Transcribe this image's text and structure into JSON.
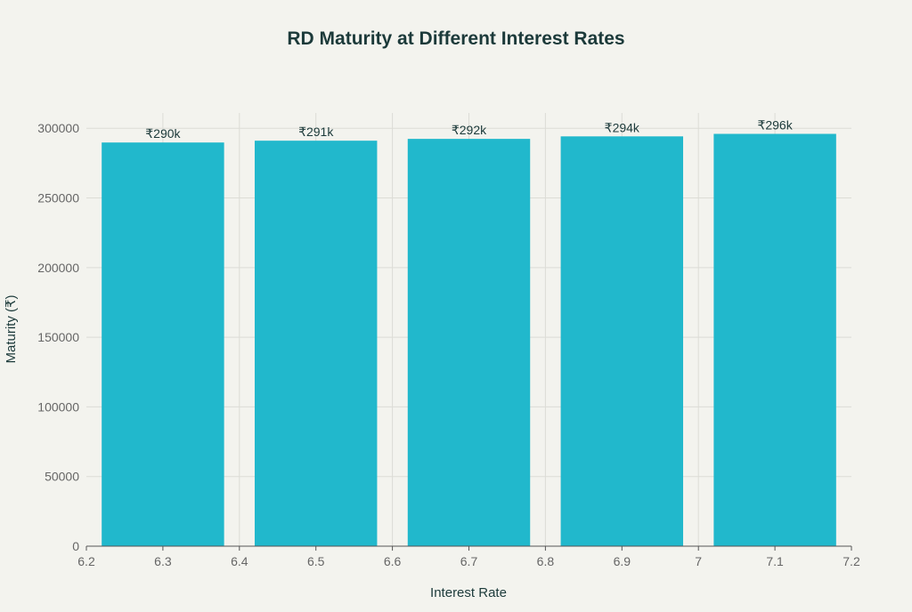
{
  "chart_data": {
    "type": "bar",
    "title": "RD Maturity at Different Interest Rates",
    "xlabel": "Interest Rate",
    "ylabel": "Maturity (₹)",
    "x": [
      6.3,
      6.5,
      6.7,
      6.9,
      7.1
    ],
    "values": [
      289800,
      291100,
      292400,
      294200,
      296000
    ],
    "data_labels": [
      "₹290k",
      "₹291k",
      "₹292k",
      "₹294k",
      "₹296k"
    ],
    "bar_width": 0.16,
    "xlim": [
      6.2,
      7.2
    ],
    "ylim": [
      0,
      311000
    ],
    "xticks": [
      6.2,
      6.3,
      6.4,
      6.5,
      6.6,
      6.7,
      6.8,
      6.9,
      7,
      7.1,
      7.2
    ],
    "xtick_labels": [
      "6.2",
      "6.3",
      "6.4",
      "6.5",
      "6.6",
      "6.7",
      "6.8",
      "6.9",
      "7",
      "7.1",
      "7.2"
    ],
    "yticks": [
      0,
      50000,
      100000,
      150000,
      200000,
      250000,
      300000
    ],
    "ytick_labels": [
      "0",
      "50000",
      "100000",
      "150000",
      "200000",
      "250000",
      "300000"
    ],
    "grid": true,
    "colors": {
      "bar": "#21b8cc",
      "background": "#f3f3ee",
      "title": "#1c3a3a",
      "grid": "#dcdcd6"
    }
  }
}
